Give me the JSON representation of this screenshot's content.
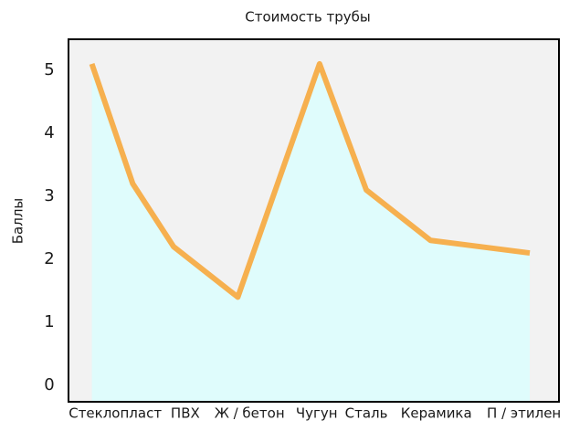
{
  "chart_data": {
    "type": "area-line",
    "title": "Стоимость трубы",
    "y_label": "Баллы",
    "x": [
      0.4,
      1.1,
      1.8,
      2.9,
      4.3,
      5.1,
      6.2,
      7.9
    ],
    "series": [
      {
        "name": "Стоимость",
        "color": "#f6b04f",
        "fill": "#dffcfc",
        "values": [
          5.1,
          3.2,
          2.2,
          1.4,
          5.1,
          3.1,
          2.3,
          2.1
        ]
      }
    ],
    "xlim": [
      0,
      8.4
    ],
    "xticks": [
      {
        "value": 0.8,
        "label": "Стеклопласт"
      },
      {
        "value": 2,
        "label": "ПВХ"
      },
      {
        "value": 3.1,
        "label": "Ж / бетон"
      },
      {
        "value": 4.25,
        "label": "Чугун"
      },
      {
        "value": 5.1,
        "label": "Сталь"
      },
      {
        "value": 6.3,
        "label": "Керамика"
      },
      {
        "value": 7.8,
        "label": "П / этилен"
      }
    ],
    "ylim": [
      -0.26,
      5.49
    ],
    "yticks": [
      0,
      1,
      2,
      3,
      4,
      5
    ],
    "plot_background": "#f2f2f2"
  }
}
